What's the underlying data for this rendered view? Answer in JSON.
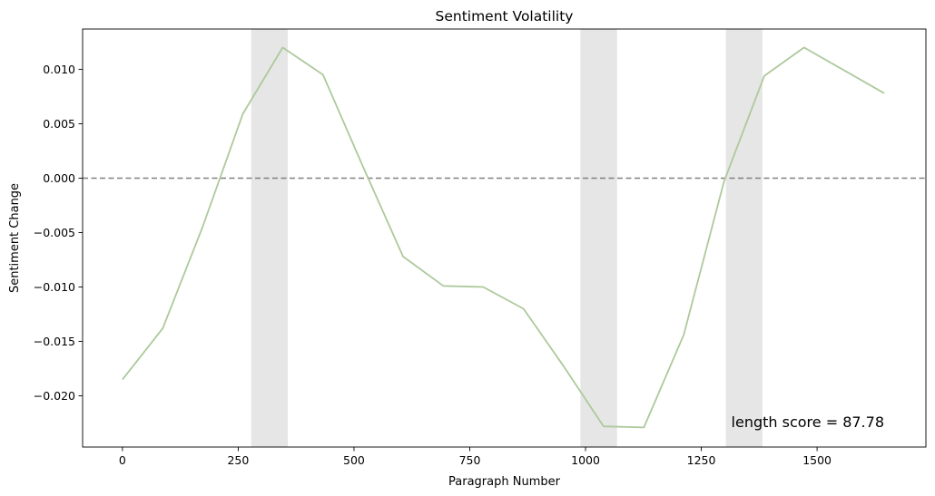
{
  "chart_data": {
    "type": "line",
    "title": "Sentiment Volatility",
    "xlabel": "Paragraph Number",
    "ylabel": "Sentiment Change",
    "xlim": [
      -86,
      1735
    ],
    "ylim": [
      -0.0247,
      0.0137
    ],
    "xticks": [
      0,
      250,
      500,
      750,
      1000,
      1250,
      1500
    ],
    "xtick_labels": [
      "0",
      "250",
      "500",
      "750",
      "1000",
      "1250",
      "1500"
    ],
    "yticks": [
      0.01,
      0.005,
      0.0,
      -0.005,
      -0.01,
      -0.015,
      -0.02
    ],
    "ytick_labels": [
      "0.010",
      "0.005",
      "0.000",
      "−0.005",
      "−0.010",
      "−0.015",
      "−0.020"
    ],
    "grid": false,
    "series": [
      {
        "color": "#adc99c",
        "x": [
          0,
          87,
          173,
          260,
          346,
          433,
          520,
          606,
          693,
          779,
          866,
          953,
          1039,
          1126,
          1212,
          1299,
          1386,
          1472,
          1645
        ],
        "y": [
          -0.0185,
          -0.0138,
          -0.0045,
          0.0059,
          0.012,
          0.0095,
          0.001,
          -0.0072,
          -0.0099,
          -0.01,
          -0.012,
          -0.0173,
          -0.0228,
          -0.0229,
          -0.0144,
          -0.0003,
          0.0094,
          0.012,
          0.0078
        ]
      }
    ],
    "reference_line": {
      "y": 0.0,
      "style": "dashed",
      "color": "#808080"
    },
    "shaded_spans": [
      {
        "x0": 278,
        "x1": 357
      },
      {
        "x0": 989,
        "x1": 1068
      },
      {
        "x0": 1303,
        "x1": 1382
      }
    ],
    "shade_color": "#e6e6e6",
    "annotation": "length score =  87.78"
  }
}
